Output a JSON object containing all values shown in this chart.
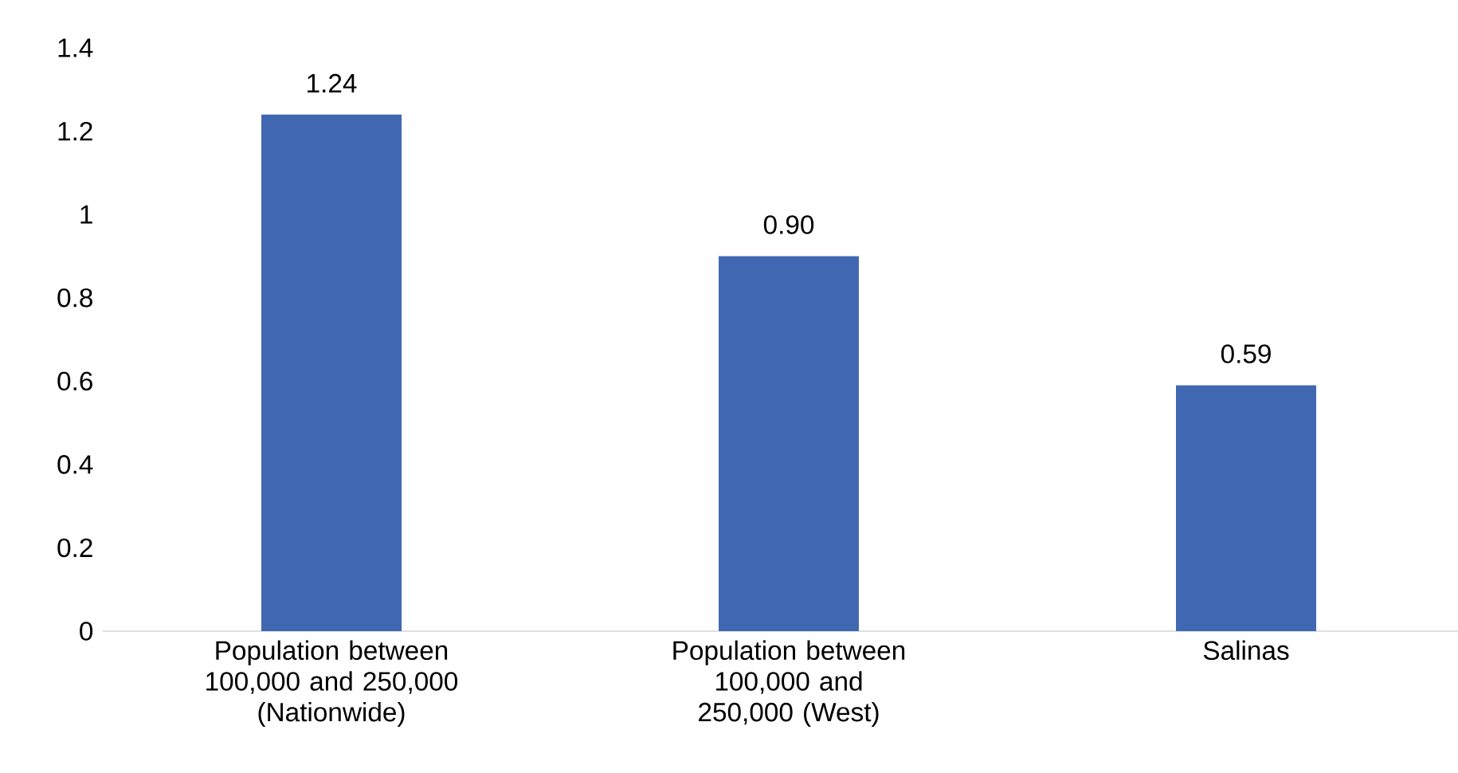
{
  "chart_data": {
    "type": "bar",
    "categories": [
      "Population between 100,000 and 250,000 (Nationwide)",
      "Population between 100,000 and 250,000 (West)",
      "Salinas"
    ],
    "values": [
      1.24,
      0.9,
      0.59
    ],
    "value_labels": [
      "1.24",
      "0.90",
      "0.59"
    ],
    "color": "#4068b2",
    "ylim": [
      0,
      1.4
    ],
    "yticks": [
      0,
      0.2,
      0.4,
      0.6,
      0.8,
      1,
      1.2,
      1.4
    ],
    "grid": false
  }
}
